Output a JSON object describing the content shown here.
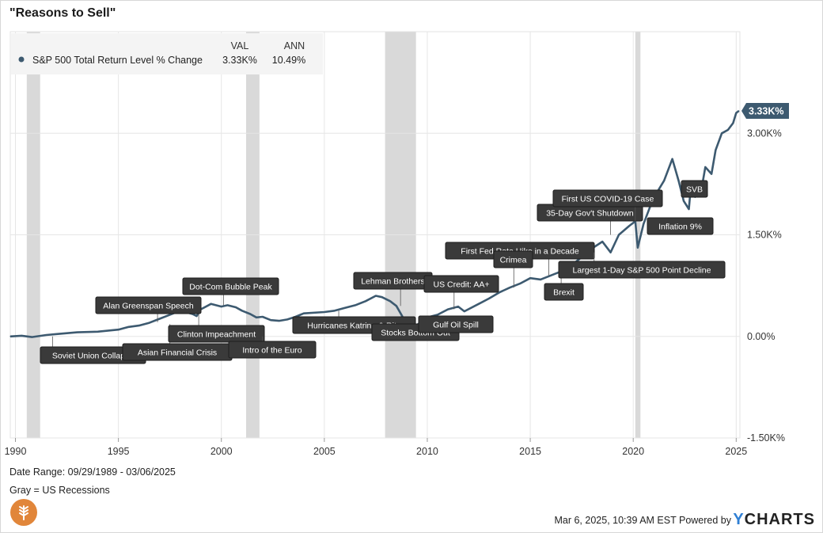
{
  "header": {
    "title": "\"Reasons to Sell\""
  },
  "legend": {
    "col_val": "VAL",
    "col_ann": "ANN",
    "series_name": "S&P 500 Total Return Level % Change",
    "val": "3.33K%",
    "ann": "10.49%"
  },
  "footer": {
    "date_range": "Date Range: 09/29/1989 - 03/06/2025",
    "gray_note": "Gray = US Recessions",
    "timestamp": "Mar 6, 2025, 10:39 AM EST Powered by",
    "brand_y": "Y",
    "brand_rest": "CHARTS"
  },
  "colors": {
    "series": "#3d5a70",
    "recession": "#d9d9d9",
    "annotation_bg": "#3a3a3a",
    "annotation_text": "#ffffff",
    "grid": "#e6e6e6",
    "logo": "#e1863a"
  },
  "chart_data": {
    "type": "line",
    "title": "\"Reasons to Sell\"",
    "x_range": [
      1989.75,
      2025.18
    ],
    "y_range": [
      -1500,
      4500
    ],
    "y_scale": "linear",
    "grid": true,
    "legend_placement": "top-left",
    "x_ticks": [
      {
        "value": 1990,
        "label": "1990"
      },
      {
        "value": 1995,
        "label": "1995"
      },
      {
        "value": 2000,
        "label": "2000"
      },
      {
        "value": 2005,
        "label": "2005"
      },
      {
        "value": 2010,
        "label": "2010"
      },
      {
        "value": 2015,
        "label": "2015"
      },
      {
        "value": 2020,
        "label": "2020"
      },
      {
        "value": 2025,
        "label": "2025"
      }
    ],
    "y_ticks": [
      {
        "value": 3000,
        "label": "3.00K%"
      },
      {
        "value": 1500,
        "label": "1.50K%"
      },
      {
        "value": 0,
        "label": "0.00%"
      },
      {
        "value": -1500,
        "label": "-1.50K%"
      }
    ],
    "last_value": {
      "value": 3330,
      "label": "3.33K%"
    },
    "recessions": [
      [
        1990.55,
        1991.2
      ],
      [
        2001.2,
        2001.85
      ],
      [
        2007.95,
        2009.45
      ],
      [
        2020.1,
        2020.35
      ]
    ],
    "series": [
      {
        "name": "S&P 500 Total Return Level % Change",
        "x": [
          1989.75,
          1990.3,
          1990.8,
          1991.5,
          1992,
          1993,
          1994,
          1995,
          1995.5,
          1996,
          1996.5,
          1997,
          1997.5,
          1998,
          1998.6,
          1998.8,
          1999,
          1999.5,
          2000,
          2000.3,
          2000.7,
          2001,
          2001.4,
          2001.7,
          2002,
          2002.4,
          2002.8,
          2003.2,
          2003.6,
          2004,
          2005,
          2005.5,
          2006,
          2006.5,
          2007,
          2007.5,
          2007.8,
          2008.2,
          2008.5,
          2008.8,
          2009.2,
          2009.5,
          2010,
          2010.5,
          2011,
          2011.5,
          2011.8,
          2012.5,
          2013,
          2013.5,
          2014,
          2014.5,
          2015,
          2015.5,
          2016,
          2016.5,
          2017,
          2017.5,
          2018,
          2018.5,
          2018.9,
          2019.3,
          2019.8,
          2020.1,
          2020.22,
          2020.5,
          2020.8,
          2021,
          2021.5,
          2021.9,
          2022.2,
          2022.45,
          2022.7,
          2022.8,
          2023,
          2023.3,
          2023.5,
          2023.8,
          2024,
          2024.3,
          2024.6,
          2024.85,
          2025,
          2025.13
        ],
        "y": [
          0,
          10,
          -10,
          20,
          35,
          60,
          70,
          100,
          140,
          160,
          200,
          260,
          320,
          380,
          330,
          300,
          400,
          480,
          440,
          460,
          430,
          380,
          330,
          280,
          290,
          240,
          230,
          250,
          290,
          340,
          360,
          380,
          420,
          460,
          520,
          600,
          580,
          520,
          450,
          290,
          130,
          170,
          280,
          320,
          400,
          440,
          370,
          480,
          560,
          650,
          720,
          780,
          860,
          840,
          900,
          960,
          1050,
          1170,
          1300,
          1400,
          1240,
          1500,
          1630,
          1700,
          1310,
          1660,
          1900,
          2050,
          2300,
          2620,
          2300,
          2000,
          1880,
          2220,
          2060,
          2150,
          2500,
          2400,
          2750,
          3000,
          3050,
          3150,
          3300,
          3330
        ]
      }
    ],
    "annotations": [
      {
        "label": "Soviet Union Collapse",
        "x": 1991.8,
        "y": 0
      },
      {
        "label": "Asian Financial Crisis",
        "x": 1997.5,
        "y": 180
      },
      {
        "label": "Alan Greenspan Speech",
        "x": 1996.9,
        "y": 210
      },
      {
        "label": "Clinton Impeachment",
        "x": 1998.9,
        "y": 330
      },
      {
        "label": "Dot-Com Bubble Peak",
        "x": 2000.1,
        "y": 460
      },
      {
        "label": "Intro of the Euro",
        "x": 2002.0,
        "y": 0
      },
      {
        "label": "Hurricanes Katrina & Rita",
        "x": 2005.7,
        "y": 380
      },
      {
        "label": "Lehman Brothers",
        "x": 2008.7,
        "y": 450
      },
      {
        "label": "Stocks Bottom Out",
        "x": 2009.2,
        "y": 130
      },
      {
        "label": "Gulf Oil Spill",
        "x": 2010.4,
        "y": 300
      },
      {
        "label": "US Credit: AA+",
        "x": 2011.3,
        "y": 400
      },
      {
        "label": "First Fed Rate Hike in a Decade",
        "x": 2015.9,
        "y": 900
      },
      {
        "label": "Crimea",
        "x": 2014.2,
        "y": 720
      },
      {
        "label": "Brexit",
        "x": 2016.5,
        "y": 860
      },
      {
        "label": "Largest 1-Day S&P 500 Point Decline",
        "x": 2018.1,
        "y": 1240
      },
      {
        "label": "35-Day Gov't Shutdown",
        "x": 2018.9,
        "y": 1500
      },
      {
        "label": "First US COVID-19 Case",
        "x": 2020.1,
        "y": 1700
      },
      {
        "label": "Inflation 9%",
        "x": 2022.2,
        "y": 1700
      },
      {
        "label": "SVB",
        "x": 2023.2,
        "y": 2100
      }
    ]
  }
}
